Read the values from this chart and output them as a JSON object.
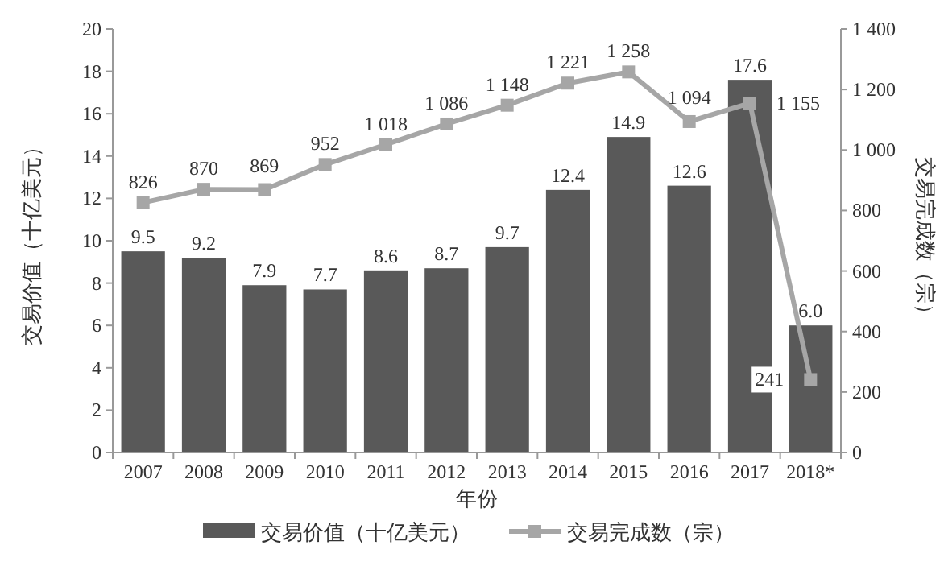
{
  "chart_data": {
    "type": "bar",
    "xlabel": "年份",
    "ylabel": "交易价值（十亿美元）",
    "y2label": "交易完成数（宗）",
    "categories": [
      "2007",
      "2008",
      "2009",
      "2010",
      "2011",
      "2012",
      "2013",
      "2014",
      "2015",
      "2016",
      "2017",
      "2018*"
    ],
    "series": [
      {
        "name": "交易价值（十亿美元）",
        "color": "#595959",
        "values": [
          9.5,
          9.2,
          7.9,
          7.7,
          8.6,
          8.7,
          9.7,
          12.4,
          14.9,
          12.6,
          17.6,
          6.0
        ],
        "value_labels": [
          "9.5",
          "9.2",
          "7.9",
          "7.7",
          "8.6",
          "8.7",
          "9.7",
          "12.4",
          "14.9",
          "12.6",
          "17.6",
          "6.0"
        ]
      },
      {
        "name": "交易完成数（宗）",
        "type": "line",
        "axis": "y2",
        "color": "#a6a6a6",
        "marker": "square",
        "values": [
          826,
          870,
          869,
          952,
          1018,
          1086,
          1148,
          1221,
          1258,
          1094,
          1155,
          241
        ],
        "value_labels": [
          "826",
          "870",
          "869",
          "952",
          "1 018",
          "1 086",
          "1 148",
          "1 221",
          "1 258",
          "1 094",
          "1 155",
          "241"
        ]
      }
    ],
    "ylim": [
      0,
      20
    ],
    "yticks": [
      0,
      2,
      4,
      6,
      8,
      10,
      12,
      14,
      16,
      18,
      20
    ],
    "y2lim": [
      0,
      1400
    ],
    "y2ticks": [
      0,
      200,
      400,
      600,
      800,
      {
        "value": 1000,
        "label": "1 000"
      },
      {
        "value": 1200,
        "label": "1 200"
      },
      {
        "value": 1400,
        "label": "1 400"
      }
    ],
    "legend": "bottom",
    "grid": false
  }
}
